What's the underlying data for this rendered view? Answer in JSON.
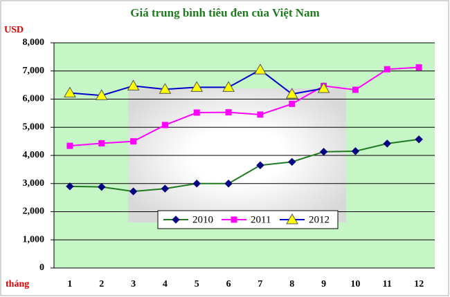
{
  "chart_data": {
    "type": "line",
    "title": "Giá trung bình tiêu đen của Việt Nam",
    "y_label": "USD",
    "x_label": "tháng",
    "categories": [
      "1",
      "2",
      "3",
      "4",
      "5",
      "6",
      "7",
      "8",
      "9",
      "10",
      "11",
      "12"
    ],
    "series": [
      {
        "name": "2010",
        "color": "#1f7a1f",
        "marker_color": "#000080",
        "marker": "diamond",
        "values": [
          2900,
          2880,
          2720,
          2820,
          3000,
          3000,
          3650,
          3770,
          4130,
          4150,
          4420,
          4570
        ]
      },
      {
        "name": "2011",
        "color": "#ff00ff",
        "marker_color": "#ff00ff",
        "marker": "square",
        "values": [
          4340,
          4430,
          4500,
          5080,
          5520,
          5530,
          5450,
          5830,
          6470,
          6330,
          7060,
          7130
        ]
      },
      {
        "name": "2012",
        "color": "#0000cc",
        "marker_color": "#ffff00",
        "marker": "triangle",
        "values": [
          6220,
          6130,
          6470,
          6350,
          6420,
          6420,
          7040,
          6180,
          6380,
          null,
          null,
          null
        ]
      }
    ],
    "ylim": [
      0,
      8000
    ],
    "yticks": [
      0,
      {
        "value": 1000,
        "label": "1,000"
      },
      {
        "value": 2000,
        "label": "2,000"
      },
      {
        "value": 3000,
        "label": "3,000"
      },
      {
        "value": 4000,
        "label": "4,000"
      },
      {
        "value": 5000,
        "label": "5,000"
      },
      {
        "value": 6000,
        "label": "6,000"
      },
      {
        "value": 7000,
        "label": "7,000"
      },
      {
        "value": 8000,
        "label": "8,000"
      }
    ],
    "grid": true,
    "legend": "lower center",
    "plot_color": "#c6f5c6"
  }
}
